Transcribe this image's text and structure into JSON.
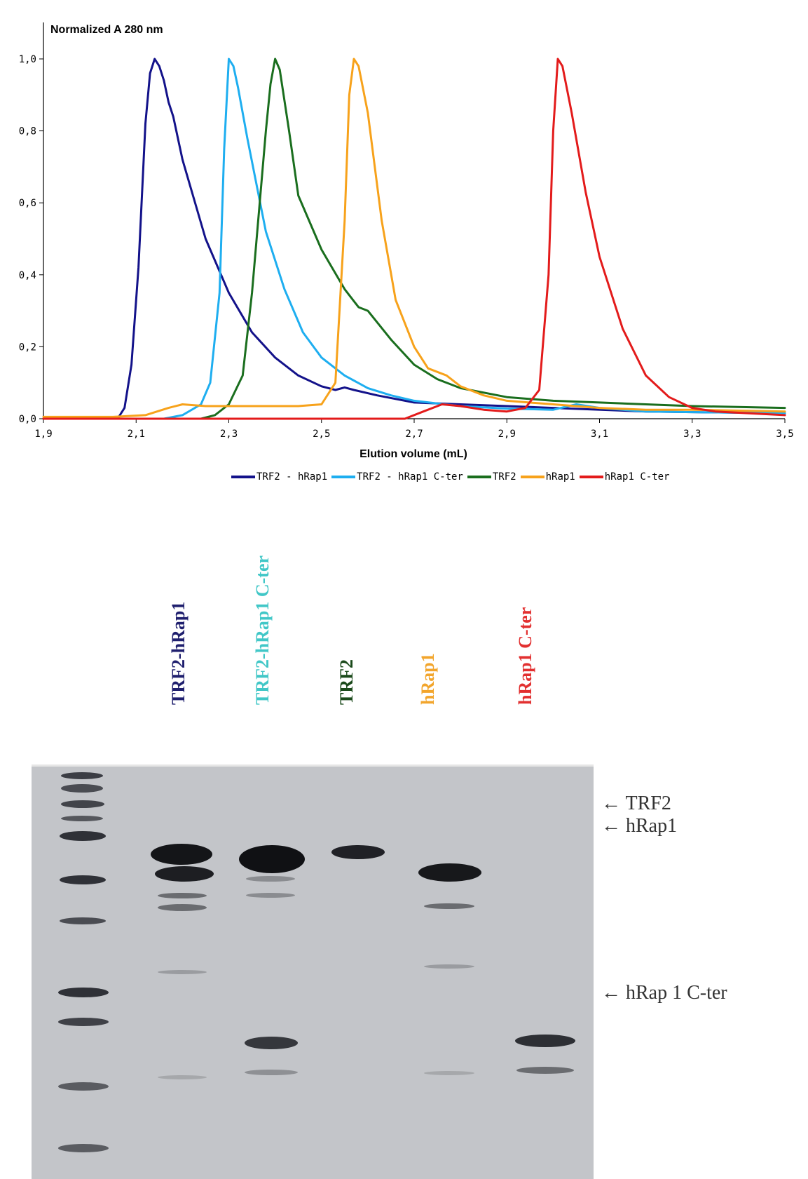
{
  "chart_data": {
    "type": "line",
    "ylabel": "Normalized A 280 nm",
    "xlabel": "Elution volume (mL)",
    "xlim": [
      1.9,
      3.5
    ],
    "ylim": [
      0,
      1.0
    ],
    "x_ticks": [
      "1,9",
      "2,1",
      "2,3",
      "2,5",
      "2,7",
      "2,9",
      "3,1",
      "3,3",
      "3,5"
    ],
    "y_ticks": [
      "0,0",
      "0,2",
      "0,4",
      "0,6",
      "0,8",
      "1,0"
    ],
    "grid": false,
    "legend_position": "bottom",
    "series": [
      {
        "name": "TRF2 - hRap1",
        "color": "#13128a",
        "points": [
          [
            1.9,
            0
          ],
          [
            2.06,
            0
          ],
          [
            2.075,
            0.03
          ],
          [
            2.09,
            0.15
          ],
          [
            2.105,
            0.42
          ],
          [
            2.12,
            0.82
          ],
          [
            2.13,
            0.96
          ],
          [
            2.14,
            1.0
          ],
          [
            2.15,
            0.98
          ],
          [
            2.16,
            0.94
          ],
          [
            2.17,
            0.88
          ],
          [
            2.18,
            0.84
          ],
          [
            2.2,
            0.72
          ],
          [
            2.25,
            0.5
          ],
          [
            2.3,
            0.35
          ],
          [
            2.35,
            0.24
          ],
          [
            2.4,
            0.17
          ],
          [
            2.45,
            0.12
          ],
          [
            2.5,
            0.09
          ],
          [
            2.53,
            0.08
          ],
          [
            2.55,
            0.087
          ],
          [
            2.57,
            0.08
          ],
          [
            2.62,
            0.065
          ],
          [
            2.7,
            0.045
          ],
          [
            2.8,
            0.04
          ],
          [
            2.9,
            0.035
          ],
          [
            3.0,
            0.03
          ],
          [
            3.2,
            0.02
          ],
          [
            3.5,
            0.015
          ]
        ]
      },
      {
        "name": "TRF2 - hRap1 C-ter",
        "color": "#1eaef0",
        "points": [
          [
            1.9,
            0
          ],
          [
            2.16,
            0
          ],
          [
            2.2,
            0.01
          ],
          [
            2.24,
            0.04
          ],
          [
            2.26,
            0.1
          ],
          [
            2.28,
            0.35
          ],
          [
            2.29,
            0.75
          ],
          [
            2.3,
            1.0
          ],
          [
            2.31,
            0.98
          ],
          [
            2.32,
            0.92
          ],
          [
            2.34,
            0.78
          ],
          [
            2.38,
            0.52
          ],
          [
            2.42,
            0.36
          ],
          [
            2.46,
            0.24
          ],
          [
            2.5,
            0.17
          ],
          [
            2.55,
            0.12
          ],
          [
            2.6,
            0.085
          ],
          [
            2.65,
            0.065
          ],
          [
            2.7,
            0.05
          ],
          [
            2.8,
            0.035
          ],
          [
            2.9,
            0.028
          ],
          [
            3.0,
            0.025
          ],
          [
            3.05,
            0.04
          ],
          [
            3.1,
            0.03
          ],
          [
            3.2,
            0.02
          ],
          [
            3.5,
            0.015
          ]
        ]
      },
      {
        "name": "TRF2",
        "color": "#1a6e1e",
        "points": [
          [
            1.9,
            0
          ],
          [
            2.24,
            0
          ],
          [
            2.27,
            0.01
          ],
          [
            2.3,
            0.04
          ],
          [
            2.33,
            0.12
          ],
          [
            2.35,
            0.35
          ],
          [
            2.37,
            0.65
          ],
          [
            2.38,
            0.8
          ],
          [
            2.39,
            0.93
          ],
          [
            2.4,
            1.0
          ],
          [
            2.41,
            0.97
          ],
          [
            2.43,
            0.8
          ],
          [
            2.45,
            0.62
          ],
          [
            2.5,
            0.47
          ],
          [
            2.55,
            0.36
          ],
          [
            2.58,
            0.31
          ],
          [
            2.6,
            0.3
          ],
          [
            2.65,
            0.22
          ],
          [
            2.7,
            0.15
          ],
          [
            2.75,
            0.11
          ],
          [
            2.8,
            0.085
          ],
          [
            2.9,
            0.06
          ],
          [
            3.0,
            0.05
          ],
          [
            3.1,
            0.045
          ],
          [
            3.2,
            0.04
          ],
          [
            3.3,
            0.035
          ],
          [
            3.5,
            0.03
          ]
        ]
      },
      {
        "name": "hRap1",
        "color": "#f7a21b",
        "points": [
          [
            1.9,
            0.005
          ],
          [
            2.05,
            0.005
          ],
          [
            2.12,
            0.01
          ],
          [
            2.17,
            0.03
          ],
          [
            2.2,
            0.04
          ],
          [
            2.25,
            0.035
          ],
          [
            2.35,
            0.035
          ],
          [
            2.45,
            0.035
          ],
          [
            2.5,
            0.04
          ],
          [
            2.53,
            0.1
          ],
          [
            2.55,
            0.55
          ],
          [
            2.56,
            0.9
          ],
          [
            2.57,
            1.0
          ],
          [
            2.58,
            0.98
          ],
          [
            2.6,
            0.85
          ],
          [
            2.63,
            0.55
          ],
          [
            2.66,
            0.33
          ],
          [
            2.7,
            0.2
          ],
          [
            2.73,
            0.14
          ],
          [
            2.77,
            0.12
          ],
          [
            2.8,
            0.09
          ],
          [
            2.85,
            0.065
          ],
          [
            2.9,
            0.05
          ],
          [
            3.0,
            0.04
          ],
          [
            3.1,
            0.03
          ],
          [
            3.2,
            0.025
          ],
          [
            3.3,
            0.025
          ],
          [
            3.5,
            0.02
          ]
        ]
      },
      {
        "name": "hRap1 C-ter",
        "color": "#e31b1b",
        "points": [
          [
            1.9,
            0
          ],
          [
            2.68,
            0
          ],
          [
            2.72,
            0.02
          ],
          [
            2.76,
            0.04
          ],
          [
            2.8,
            0.035
          ],
          [
            2.85,
            0.025
          ],
          [
            2.9,
            0.02
          ],
          [
            2.94,
            0.03
          ],
          [
            2.97,
            0.08
          ],
          [
            2.99,
            0.4
          ],
          [
            3.0,
            0.8
          ],
          [
            3.01,
            1.0
          ],
          [
            3.02,
            0.98
          ],
          [
            3.04,
            0.85
          ],
          [
            3.07,
            0.63
          ],
          [
            3.1,
            0.45
          ],
          [
            3.15,
            0.25
          ],
          [
            3.2,
            0.12
          ],
          [
            3.25,
            0.06
          ],
          [
            3.3,
            0.03
          ],
          [
            3.35,
            0.02
          ],
          [
            3.5,
            0.01
          ]
        ]
      }
    ]
  },
  "gel": {
    "lane_labels": [
      {
        "text": "TRF2-hRap1",
        "color": "#1f1f6e"
      },
      {
        "text": "TRF2-hRap1 C-ter",
        "color": "#41c7c7"
      },
      {
        "text": "TRF2",
        "color": "#1b4a1b"
      },
      {
        "text": "hRap1",
        "color": "#f2a52c"
      },
      {
        "text": "hRap1 C-ter",
        "color": "#e23030"
      }
    ],
    "side_labels": [
      "← TRF2",
      "← hRap1",
      "← hRap 1 C-ter"
    ]
  }
}
